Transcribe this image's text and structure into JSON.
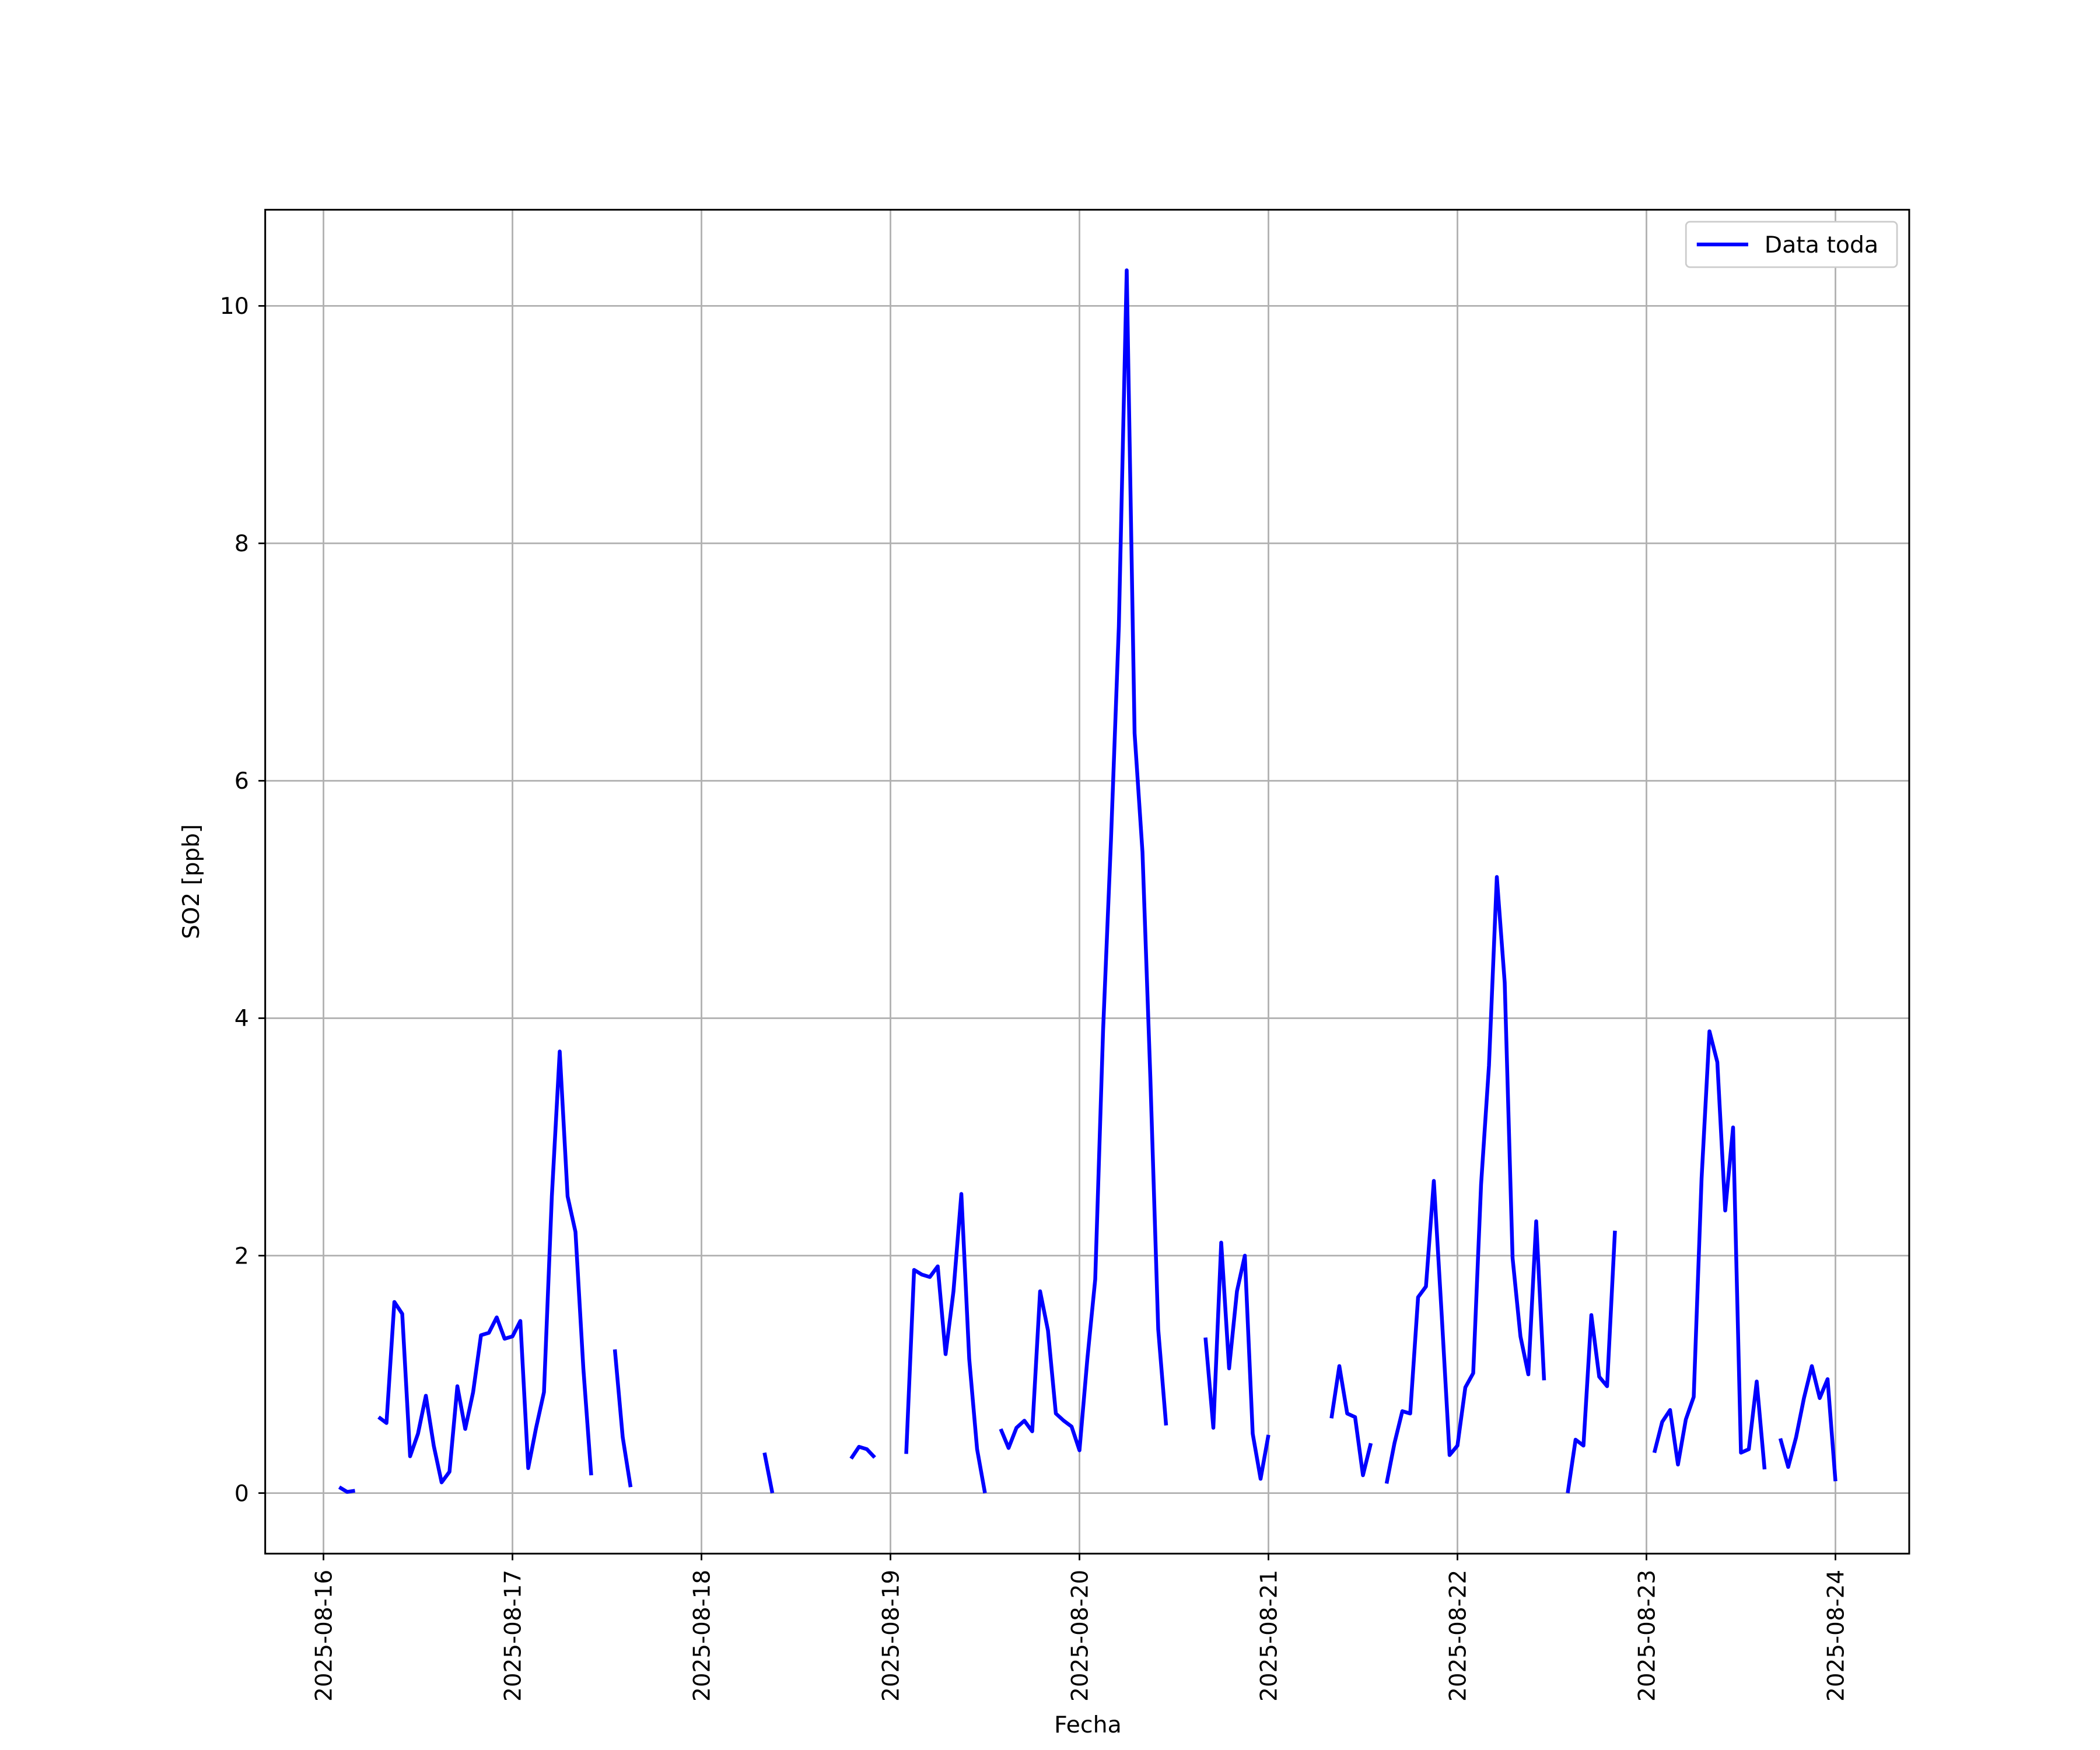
{
  "chart_data": {
    "type": "line",
    "xlabel": "Fecha",
    "ylabel": "SO2 [ppb]",
    "x": [
      "2025-08-16 02:00",
      "2025-08-16 03:00",
      "2025-08-16 04:00",
      "2025-08-16 05:00",
      "2025-08-16 07:00",
      "2025-08-16 08:00",
      "2025-08-16 09:00",
      "2025-08-16 10:00",
      "2025-08-16 11:00",
      "2025-08-16 12:00",
      "2025-08-16 13:00",
      "2025-08-16 14:00",
      "2025-08-16 15:00",
      "2025-08-16 16:00",
      "2025-08-16 17:00",
      "2025-08-16 18:00",
      "2025-08-16 19:00",
      "2025-08-16 20:00",
      "2025-08-16 21:00",
      "2025-08-16 22:00",
      "2025-08-16 23:00",
      "2025-08-17 00:00",
      "2025-08-17 01:00",
      "2025-08-17 02:00",
      "2025-08-17 03:00",
      "2025-08-17 04:00",
      "2025-08-17 05:00",
      "2025-08-17 06:00",
      "2025-08-17 07:00",
      "2025-08-17 08:00",
      "2025-08-17 09:00",
      "2025-08-17 10:00",
      "2025-08-17 11:00",
      "2025-08-17 13:00",
      "2025-08-17 14:00",
      "2025-08-17 15:00",
      "2025-08-17 16:00",
      "2025-08-18 08:00",
      "2025-08-18 09:00",
      "2025-08-18 10:00",
      "2025-08-18 19:00",
      "2025-08-18 20:00",
      "2025-08-18 21:00",
      "2025-08-18 22:00",
      "2025-08-18 23:00",
      "2025-08-19 02:00",
      "2025-08-19 03:00",
      "2025-08-19 04:00",
      "2025-08-19 05:00",
      "2025-08-19 06:00",
      "2025-08-19 07:00",
      "2025-08-19 08:00",
      "2025-08-19 09:00",
      "2025-08-19 10:00",
      "2025-08-19 11:00",
      "2025-08-19 12:00",
      "2025-08-19 13:00",
      "2025-08-19 14:00",
      "2025-08-19 15:00",
      "2025-08-19 16:00",
      "2025-08-19 17:00",
      "2025-08-19 18:00",
      "2025-08-19 19:00",
      "2025-08-19 20:00",
      "2025-08-19 21:00",
      "2025-08-19 22:00",
      "2025-08-19 23:00",
      "2025-08-20 00:00",
      "2025-08-20 01:00",
      "2025-08-20 02:00",
      "2025-08-20 03:00",
      "2025-08-20 04:00",
      "2025-08-20 05:00",
      "2025-08-20 06:00",
      "2025-08-20 07:00",
      "2025-08-20 08:00",
      "2025-08-20 09:00",
      "2025-08-20 10:00",
      "2025-08-20 11:00",
      "2025-08-20 12:00",
      "2025-08-20 16:00",
      "2025-08-20 17:00",
      "2025-08-20 18:00",
      "2025-08-20 19:00",
      "2025-08-20 20:00",
      "2025-08-20 21:00",
      "2025-08-20 22:00",
      "2025-08-20 23:00",
      "2025-08-21 00:00",
      "2025-08-21 01:00",
      "2025-08-21 08:00",
      "2025-08-21 09:00",
      "2025-08-21 10:00",
      "2025-08-21 11:00",
      "2025-08-21 12:00",
      "2025-08-21 13:00",
      "2025-08-21 14:00",
      "2025-08-21 15:00",
      "2025-08-21 16:00",
      "2025-08-21 17:00",
      "2025-08-21 18:00",
      "2025-08-21 19:00",
      "2025-08-21 20:00",
      "2025-08-21 21:00",
      "2025-08-21 22:00",
      "2025-08-21 23:00",
      "2025-08-22 00:00",
      "2025-08-22 01:00",
      "2025-08-22 02:00",
      "2025-08-22 03:00",
      "2025-08-22 04:00",
      "2025-08-22 05:00",
      "2025-08-22 06:00",
      "2025-08-22 07:00",
      "2025-08-22 08:00",
      "2025-08-22 09:00",
      "2025-08-22 10:00",
      "2025-08-22 11:00",
      "2025-08-22 12:00",
      "2025-08-22 14:00",
      "2025-08-22 15:00",
      "2025-08-22 16:00",
      "2025-08-22 17:00",
      "2025-08-22 18:00",
      "2025-08-22 19:00",
      "2025-08-22 20:00",
      "2025-08-22 21:00",
      "2025-08-23 01:00",
      "2025-08-23 02:00",
      "2025-08-23 03:00",
      "2025-08-23 04:00",
      "2025-08-23 05:00",
      "2025-08-23 06:00",
      "2025-08-23 07:00",
      "2025-08-23 08:00",
      "2025-08-23 09:00",
      "2025-08-23 10:00",
      "2025-08-23 11:00",
      "2025-08-23 12:00",
      "2025-08-23 13:00",
      "2025-08-23 14:00",
      "2025-08-23 15:00",
      "2025-08-23 16:00",
      "2025-08-23 17:00",
      "2025-08-23 18:00",
      "2025-08-23 19:00",
      "2025-08-23 20:00",
      "2025-08-23 21:00",
      "2025-08-23 22:00",
      "2025-08-23 23:00",
      "2025-08-24 00:00"
    ],
    "series": [
      {
        "name": "Data toda",
        "color": "#0000ff",
        "values": [
          0.05,
          0.01,
          0.02,
          null,
          0.64,
          0.59,
          1.61,
          1.51,
          0.31,
          0.5,
          0.82,
          0.4,
          0.09,
          0.18,
          0.9,
          0.54,
          0.85,
          1.33,
          1.35,
          1.48,
          1.3,
          1.32,
          1.45,
          0.21,
          0.55,
          0.85,
          2.5,
          3.72,
          2.5,
          2.2,
          1.05,
          0.15,
          null,
          1.21,
          0.47,
          0.05,
          null,
          0.34,
          0.0,
          null,
          0.29,
          0.39,
          0.37,
          0.3,
          null,
          0.33,
          1.88,
          1.84,
          1.82,
          1.91,
          1.17,
          1.7,
          2.52,
          1.13,
          0.37,
          0.0,
          null,
          0.54,
          0.38,
          0.55,
          0.61,
          0.52,
          1.7,
          1.37,
          0.67,
          0.61,
          0.56,
          0.36,
          1.13,
          1.8,
          3.9,
          5.5,
          7.3,
          10.3,
          6.4,
          5.4,
          3.5,
          1.38,
          0.57,
          null,
          1.31,
          0.55,
          2.11,
          1.05,
          1.7,
          2.0,
          0.5,
          0.12,
          0.49,
          null,
          0.63,
          1.07,
          0.67,
          0.64,
          0.15,
          0.42,
          null,
          0.08,
          0.42,
          0.69,
          0.67,
          1.65,
          1.74,
          2.63,
          1.5,
          0.32,
          0.4,
          0.89,
          1.01,
          2.6,
          3.6,
          5.19,
          4.3,
          1.98,
          1.32,
          1.0,
          2.29,
          0.95,
          null,
          0.0,
          0.45,
          0.4,
          1.5,
          0.98,
          0.9,
          2.21,
          null,
          0.34,
          0.6,
          0.7,
          0.24,
          0.62,
          0.81,
          2.65,
          3.89,
          3.63,
          2.38,
          3.08,
          0.34,
          0.37,
          0.94,
          0.2,
          null,
          0.46,
          0.22,
          0.47,
          0.8,
          1.07,
          0.8,
          0.96,
          0.1
        ]
      }
    ],
    "xlim": [
      "2025-08-15 16:36",
      "2025-08-24 09:22"
    ],
    "xticks": [
      "2025-08-16",
      "2025-08-17",
      "2025-08-18",
      "2025-08-19",
      "2025-08-20",
      "2025-08-21",
      "2025-08-22",
      "2025-08-23",
      "2025-08-24"
    ],
    "ylim": [
      -0.51,
      10.81
    ],
    "yticks": [
      0,
      2,
      4,
      6,
      8,
      10
    ],
    "grid": true,
    "legend": "upper right"
  }
}
